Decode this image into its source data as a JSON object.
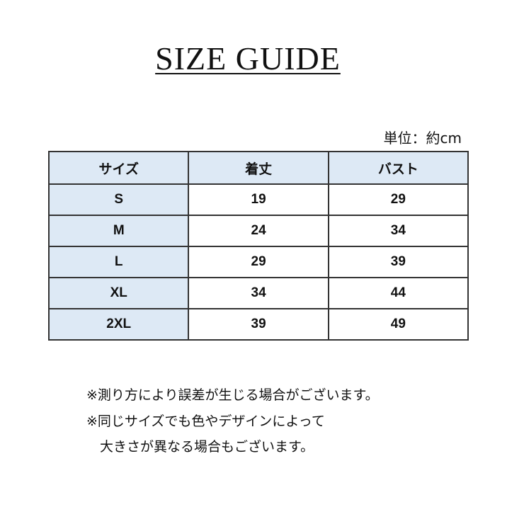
{
  "title": "SIZE GUIDE",
  "unit": "単位：約cm",
  "table": {
    "headers": [
      "サイズ",
      "着丈",
      "バスト"
    ],
    "rows": [
      [
        "S",
        "19",
        "29"
      ],
      [
        "M",
        "24",
        "34"
      ],
      [
        "L",
        "29",
        "39"
      ],
      [
        "XL",
        "34",
        "44"
      ],
      [
        "2XL",
        "39",
        "49"
      ]
    ]
  },
  "notes": [
    "※測り方により誤差が生じる場合がございます。",
    "※同じサイズでも色やデザインによって",
    "　大きさが異なる場合もございます。"
  ],
  "colors": {
    "header_bg": "#dde9f5",
    "border": "#333333"
  }
}
